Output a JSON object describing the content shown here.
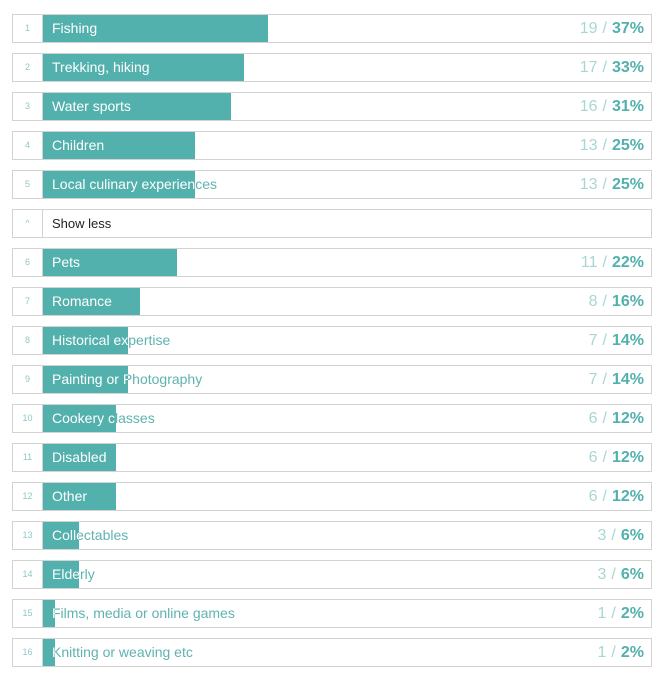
{
  "separator": "/",
  "rows": [
    {
      "rank": 1,
      "label": "Fishing",
      "count": 19,
      "percent": 37,
      "percent_label": "37%"
    },
    {
      "rank": 2,
      "label": "Trekking, hiking",
      "count": 17,
      "percent": 33,
      "percent_label": "33%"
    },
    {
      "rank": 3,
      "label": "Water sports",
      "count": 16,
      "percent": 31,
      "percent_label": "31%"
    },
    {
      "rank": 4,
      "label": "Children",
      "count": 13,
      "percent": 25,
      "percent_label": "25%"
    },
    {
      "rank": 5,
      "label": "Local culinary experiences",
      "count": 13,
      "percent": 25,
      "percent_label": "25%"
    },
    {
      "icon": "^",
      "label": "Show less"
    },
    {
      "rank": 6,
      "label": "Pets",
      "count": 11,
      "percent": 22,
      "percent_label": "22%"
    },
    {
      "rank": 7,
      "label": "Romance",
      "count": 8,
      "percent": 16,
      "percent_label": "16%"
    },
    {
      "rank": 8,
      "label": "Historical expertise",
      "count": 7,
      "percent": 14,
      "percent_label": "14%"
    },
    {
      "rank": 9,
      "label": "Painting or Photography",
      "count": 7,
      "percent": 14,
      "percent_label": "14%"
    },
    {
      "rank": 10,
      "label": "Cookery classes",
      "count": 6,
      "percent": 12,
      "percent_label": "12%"
    },
    {
      "rank": 11,
      "label": "Disabled",
      "count": 6,
      "percent": 12,
      "percent_label": "12%"
    },
    {
      "rank": 12,
      "label": "Other",
      "count": 6,
      "percent": 12,
      "percent_label": "12%"
    },
    {
      "rank": 13,
      "label": "Collectables",
      "count": 3,
      "percent": 6,
      "percent_label": "6%"
    },
    {
      "rank": 14,
      "label": "Elderly",
      "count": 3,
      "percent": 6,
      "percent_label": "6%"
    },
    {
      "rank": 15,
      "label": "Films, media or online games",
      "count": 1,
      "percent": 2,
      "percent_label": "2%"
    },
    {
      "rank": 16,
      "label": "Knitting or weaving etc",
      "count": 1,
      "percent": 2,
      "percent_label": "2%"
    }
  ]
}
